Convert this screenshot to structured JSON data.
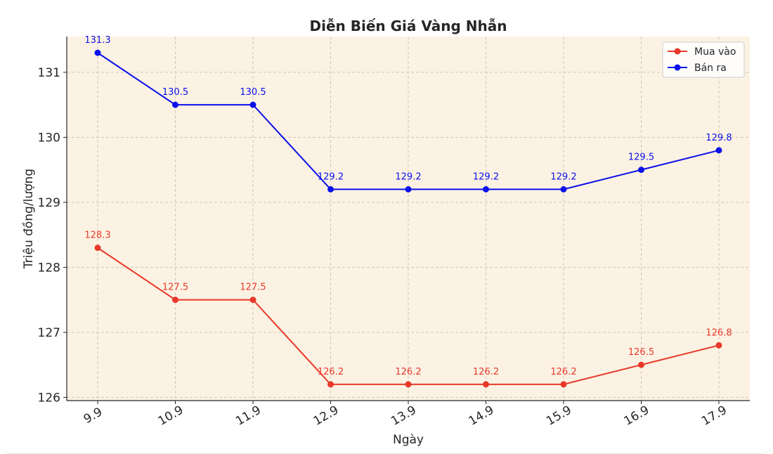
{
  "chart_data": {
    "type": "line",
    "title": "Diễn Biến Giá Vàng Nhẫn",
    "xlabel": "Ngày",
    "ylabel": "Triệu đồng/lượng",
    "categories": [
      "9.9",
      "10.9",
      "11.9",
      "12.9",
      "13.9",
      "14.9",
      "15.9",
      "16.9",
      "17.9"
    ],
    "yticks": [
      126,
      127,
      128,
      129,
      130,
      131
    ],
    "ylim": [
      125.95,
      131.55
    ],
    "grid": true,
    "legend_position": "top-right",
    "background_color": "#fcf2e3",
    "series": [
      {
        "name": "Mua vào",
        "color": "#e8382a",
        "values": [
          128.3,
          127.5,
          127.5,
          126.2,
          126.2,
          126.2,
          126.2,
          126.5,
          126.8
        ]
      },
      {
        "name": "Bán ra",
        "color": "#0a10ea",
        "values": [
          131.3,
          130.5,
          130.5,
          129.2,
          129.2,
          129.2,
          129.2,
          129.5,
          129.8
        ]
      }
    ]
  }
}
